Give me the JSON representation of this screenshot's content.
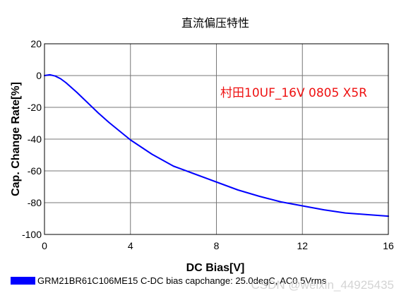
{
  "chart_data": {
    "type": "line",
    "title": "直流偏压特性",
    "xlabel": "DC Bias[V]",
    "ylabel": "Cap. Change Rate[%]",
    "xlim": [
      0,
      16
    ],
    "ylim": [
      -100,
      20
    ],
    "xticks": [
      0,
      4,
      8,
      12,
      16
    ],
    "yticks": [
      20,
      0,
      -20,
      -40,
      -60,
      -80,
      -100
    ],
    "grid": true,
    "annotation": "村田10UF_16V 0805 X5R",
    "series": [
      {
        "name": "GRM21BR61C106ME15 C-DC bias capchange: 25.0degC, AC0.5Vrms",
        "color": "#0000ff",
        "x": [
          0,
          0.25,
          0.5,
          0.75,
          1.0,
          1.5,
          2.0,
          2.5,
          3.0,
          3.5,
          4.0,
          5.0,
          6.0,
          7.0,
          8.0,
          9.0,
          10.0,
          11.0,
          12.0,
          13.0,
          14.0,
          15.0,
          16.0
        ],
        "y": [
          0,
          0.5,
          -0.3,
          -2,
          -4.5,
          -10.5,
          -17,
          -23.5,
          -29.5,
          -35,
          -40.5,
          -49.5,
          -57,
          -62,
          -67,
          -72,
          -76,
          -79.5,
          -82,
          -84.5,
          -86.5,
          -87.5,
          -88.5
        ]
      }
    ],
    "legend": {
      "position": "bottom-left",
      "label": "GRM21BR61C106ME15 C-DC bias capchange: 25.0degC, AC0.5Vrms"
    }
  },
  "watermark": "CSDN @weixin_44925435"
}
